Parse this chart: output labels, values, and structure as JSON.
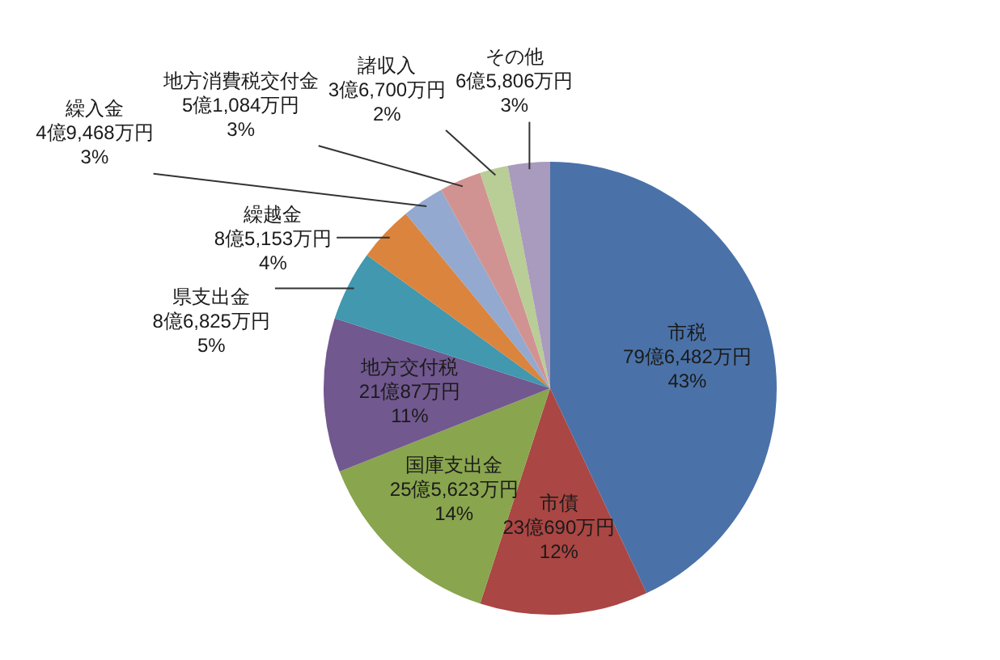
{
  "chart_data": {
    "type": "pie",
    "categories": [
      "市税",
      "市債",
      "国庫支出金",
      "地方交付税",
      "県支出金",
      "繰越金",
      "繰入金",
      "地方消費税交付金",
      "諸収入",
      "その他"
    ],
    "values": [
      43,
      12,
      14,
      11,
      5,
      4,
      3,
      3,
      2,
      3
    ],
    "colors": [
      "#4a72a8",
      "#aa4643",
      "#89a54e",
      "#71588f",
      "#4198af",
      "#db843d",
      "#93a9cf",
      "#d19392",
      "#b9cd96",
      "#a99bbd"
    ],
    "value_labels": [
      "79億6,482万円\n43%",
      "23億690万円\n12%",
      "25億5,623万円\n14%",
      "21億87万円\n11%",
      "8億6,825万円\n5%",
      "8億5,153万円\n4%",
      "4億9,468万円\n3%",
      "5億1,084万円\n3%",
      "3億6,700万円\n2%",
      "6億5,806万円\n3%"
    ]
  }
}
